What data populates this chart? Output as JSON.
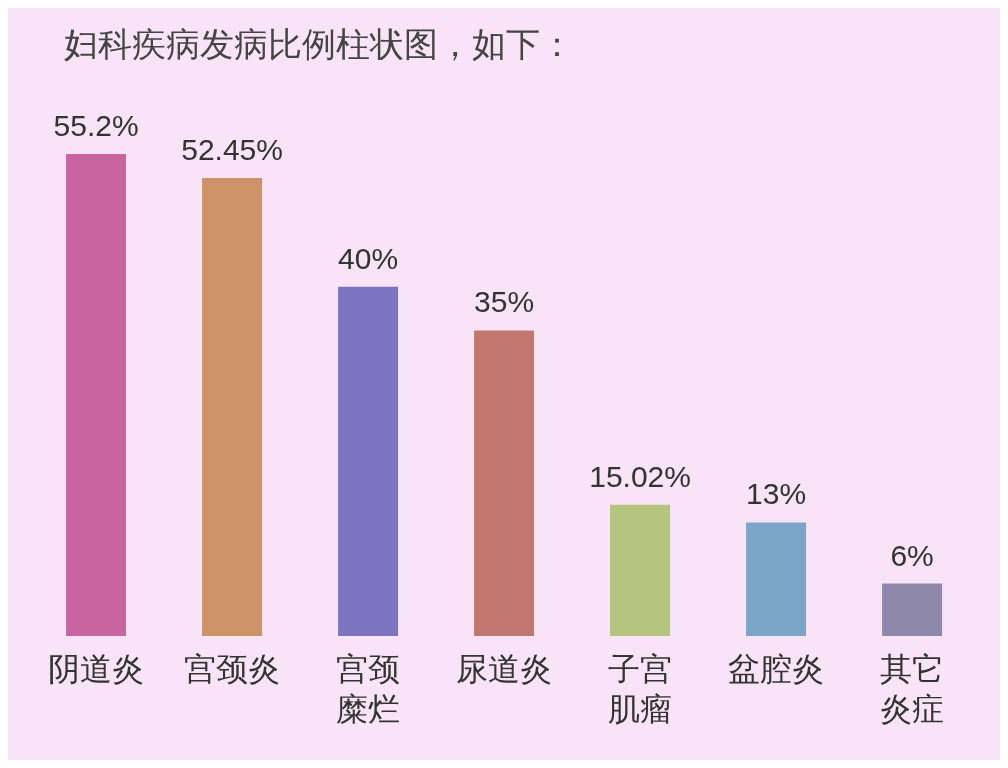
{
  "chart_data": {
    "type": "bar",
    "title": "妇科疾病发病比例柱状图，如下：",
    "categories": [
      "阴道炎",
      "宫颈炎",
      "宫颈糜烂",
      "尿道炎",
      "子宫肌瘤",
      "盆腔炎",
      "其它炎症"
    ],
    "values": [
      55.2,
      52.45,
      40,
      35,
      15.02,
      13,
      6
    ],
    "colors": [
      "#c8649f",
      "#cc9268",
      "#7c74c0",
      "#c0786e",
      "#b5c47f",
      "#7aa4c8",
      "#8e88aa"
    ],
    "value_labels": [
      "55.2%",
      "52.45%",
      "40%",
      "35%",
      "15.02%",
      "13%",
      "6%"
    ]
  }
}
